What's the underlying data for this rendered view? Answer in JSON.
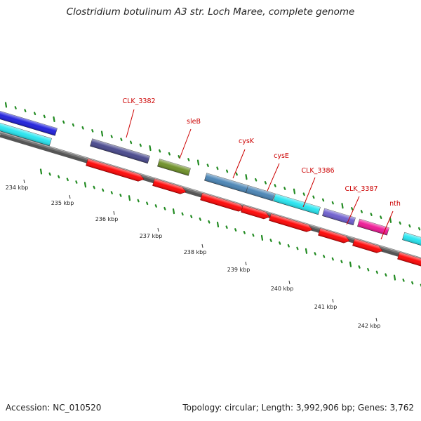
{
  "title": "Clostridium botulinum A3 str. Loch Maree, complete genome",
  "footer": {
    "accession_label": "Accession:",
    "accession": "NC_010520",
    "topology_label": "Topology:",
    "topology": "circular",
    "length_label": "Length:",
    "length": "3,992,906 bp",
    "genes_label": "Genes:",
    "genes": "3,762"
  },
  "ruler": {
    "ticks": [
      "234 kbp",
      "235 kbp",
      "236 kbp",
      "237 kbp",
      "238 kbp",
      "239 kbp",
      "240 kbp",
      "241 kbp",
      "242 kbp"
    ]
  },
  "colors": {
    "backbone": "#777777",
    "gene_label": "#cc0000",
    "forward_cds": "#ff0000",
    "tick_green": "#228b22"
  },
  "genes": [
    {
      "label": "",
      "track": "outer",
      "color": "#1a1adb"
    },
    {
      "label": "",
      "track": "mid",
      "color": "#22e5f0"
    },
    {
      "label": "CLK_3382",
      "track": "outer",
      "color": "#44448a"
    },
    {
      "label": "",
      "track": "inner",
      "color": "#ff0000",
      "arrow": true
    },
    {
      "label": "sleB",
      "track": "outer",
      "color": "#6b8e23"
    },
    {
      "label": "",
      "track": "inner",
      "color": "#ff0000",
      "arrow": true
    },
    {
      "label": "cysK",
      "track": "outer",
      "color": "#4682b4"
    },
    {
      "label": "",
      "track": "inner",
      "color": "#ff0000",
      "arrow": true
    },
    {
      "label": "cysE",
      "track": "outer",
      "color": "#4682b4"
    },
    {
      "label": "",
      "track": "inner",
      "color": "#ff0000",
      "arrow": true
    },
    {
      "label": "CLK_3386",
      "track": "outer",
      "color": "#22e5f0"
    },
    {
      "label": "",
      "track": "inner",
      "color": "#ff0000",
      "arrow": true
    },
    {
      "label": "CLK_3387",
      "track": "outer",
      "color": "#6a5acd"
    },
    {
      "label": "",
      "track": "inner",
      "color": "#ff0000",
      "arrow": true
    },
    {
      "label": "nth",
      "track": "outer",
      "color": "#ee1493"
    },
    {
      "label": "",
      "track": "inner",
      "color": "#ff0000",
      "arrow": true
    },
    {
      "label": "",
      "track": "outer",
      "color": "#22e5f0"
    },
    {
      "label": "",
      "track": "inner",
      "color": "#ff0000",
      "arrow": true
    }
  ]
}
